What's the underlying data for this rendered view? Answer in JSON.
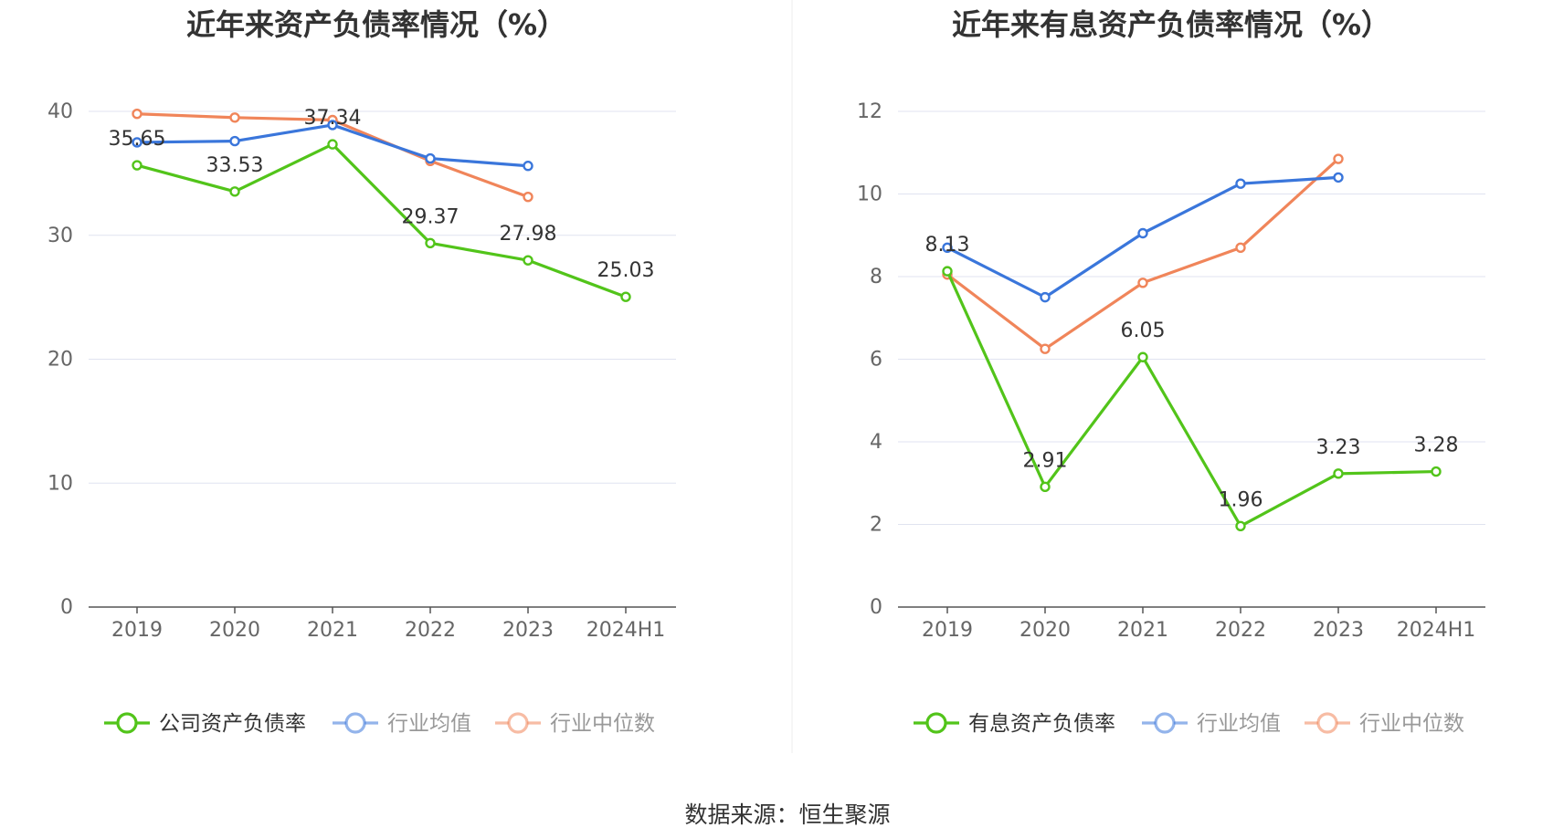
{
  "source_label": "数据来源：恒生聚源",
  "chart_data": [
    {
      "type": "line",
      "title": "近年来资产负债率情况（%）",
      "categories": [
        "2019",
        "2020",
        "2021",
        "2022",
        "2023",
        "2024H1"
      ],
      "ylim": [
        0,
        40
      ],
      "yticks": [
        "0",
        "10",
        "20",
        "30",
        "40"
      ],
      "grid": true,
      "legend_position": "bottom",
      "series": [
        {
          "name": "公司资产负债率",
          "color": "#52c41a",
          "values": [
            35.65,
            33.53,
            37.34,
            29.37,
            27.98,
            25.03
          ],
          "labels": [
            "35.65",
            "33.53",
            "37.34",
            "29.37",
            "27.98",
            "25.03"
          ]
        },
        {
          "name": "行业均值",
          "color": "#3a76db",
          "values": [
            37.5,
            37.6,
            38.9,
            36.2,
            35.6,
            null
          ]
        },
        {
          "name": "行业中位数",
          "color": "#f0855a",
          "values": [
            39.8,
            39.5,
            39.3,
            36.0,
            33.1,
            null
          ]
        }
      ]
    },
    {
      "type": "line",
      "title": "近年来有息资产负债率情况（%）",
      "categories": [
        "2019",
        "2020",
        "2021",
        "2022",
        "2023",
        "2024H1"
      ],
      "ylim": [
        0,
        12
      ],
      "yticks": [
        "0",
        "2",
        "4",
        "6",
        "8",
        "10",
        "12"
      ],
      "grid": true,
      "legend_position": "bottom",
      "series": [
        {
          "name": "有息资产负债率",
          "color": "#52c41a",
          "values": [
            8.13,
            2.91,
            6.05,
            1.96,
            3.23,
            3.28
          ],
          "labels": [
            "8.13",
            "2.91",
            "6.05",
            "1.96",
            "3.23",
            "3.28"
          ]
        },
        {
          "name": "行业均值",
          "color": "#3a76db",
          "values": [
            8.7,
            7.5,
            9.05,
            10.25,
            10.4,
            null
          ]
        },
        {
          "name": "行业中位数",
          "color": "#f0855a",
          "values": [
            8.05,
            6.25,
            7.85,
            8.7,
            10.85,
            null
          ]
        }
      ]
    }
  ]
}
